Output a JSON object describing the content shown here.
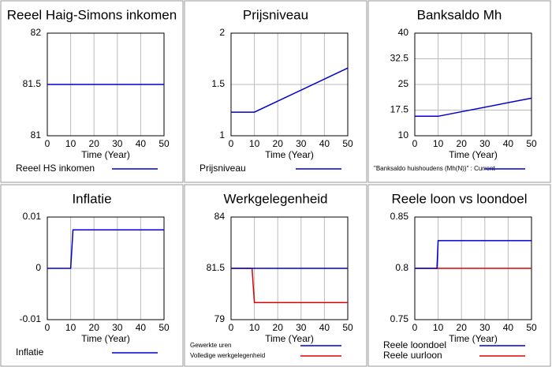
{
  "chart_data": [
    {
      "type": "line",
      "title": "Reeel Haig-Simons inkomen",
      "x_label": "Time (Year)",
      "x": [
        0,
        10,
        50
      ],
      "xlim": [
        0,
        50
      ],
      "xticks": [
        0,
        10,
        20,
        30,
        40,
        50
      ],
      "ylim": [
        81,
        82
      ],
      "yticks": [
        81,
        81.5,
        82
      ],
      "grid": true,
      "series": [
        {
          "name": "Reeel HS inkomen",
          "color": "#0000cc",
          "values": [
            81.5,
            81.5,
            81.5
          ]
        }
      ]
    },
    {
      "type": "line",
      "title": "Prijsniveau",
      "x_label": "Time (Year)",
      "x": [
        0,
        10,
        50
      ],
      "xlim": [
        0,
        50
      ],
      "xticks": [
        0,
        10,
        20,
        30,
        40,
        50
      ],
      "ylim": [
        1,
        2
      ],
      "yticks": [
        1,
        1.5,
        2
      ],
      "grid": true,
      "series": [
        {
          "name": "Prijsniveau",
          "color": "#0000cc",
          "values": [
            1.23,
            1.23,
            1.66
          ]
        }
      ]
    },
    {
      "type": "line",
      "title": "Banksaldo Mh",
      "x_label": "Time (Year)",
      "x": [
        0,
        10,
        50
      ],
      "xlim": [
        0,
        50
      ],
      "xticks": [
        0,
        10,
        20,
        30,
        40,
        50
      ],
      "ylim": [
        10,
        40
      ],
      "yticks": [
        10,
        17.5,
        25,
        32.5,
        40
      ],
      "grid": true,
      "series": [
        {
          "name": "\"Banksaldo huishoudens (Mh(N))\" : Current",
          "color": "#0000cc",
          "values": [
            15.7,
            15.7,
            21.0
          ]
        }
      ]
    },
    {
      "type": "line",
      "title": "Inflatie",
      "x_label": "Time (Year)",
      "x": [
        0,
        10,
        11,
        50
      ],
      "xlim": [
        0,
        50
      ],
      "xticks": [
        0,
        10,
        20,
        30,
        40,
        50
      ],
      "ylim": [
        -0.01,
        0.01
      ],
      "yticks": [
        -0.01,
        0,
        0.01
      ],
      "grid": true,
      "series": [
        {
          "name": "Inflatie",
          "color": "#0000cc",
          "values": [
            0,
            0,
            0.0075,
            0.0075
          ]
        }
      ]
    },
    {
      "type": "line",
      "title": "Werkgelegenheid",
      "x_label": "Time (Year)",
      "x": [
        0,
        9,
        10,
        50
      ],
      "xlim": [
        0,
        50
      ],
      "xticks": [
        0,
        10,
        20,
        30,
        40,
        50
      ],
      "ylim": [
        79,
        84
      ],
      "yticks": [
        79,
        81.5,
        84
      ],
      "grid": true,
      "series": [
        {
          "name": "Gewerkte uren",
          "color": "#0000cc",
          "values": [
            81.5,
            81.5,
            81.5,
            81.5
          ]
        },
        {
          "name": "Volledige werkgelegenheid",
          "color": "#dd0000",
          "values": [
            81.5,
            81.5,
            79.83,
            79.83
          ]
        }
      ]
    },
    {
      "type": "line",
      "title": "Reele loon vs loondoel",
      "x_label": "Time (Year)",
      "x": [
        0,
        9.5,
        10,
        50
      ],
      "xlim": [
        0,
        50
      ],
      "xticks": [
        0,
        10,
        20,
        30,
        40,
        50
      ],
      "ylim": [
        0.75,
        0.85
      ],
      "yticks": [
        0.75,
        0.8,
        0.85
      ],
      "grid": true,
      "series": [
        {
          "name": "Reele loondoel",
          "color": "#0000cc",
          "values": [
            0.8,
            0.8,
            0.827,
            0.827
          ]
        },
        {
          "name": "Reele uurloon",
          "color": "#dd0000",
          "values": [
            0.8,
            0.8,
            0.8,
            0.8
          ]
        }
      ]
    }
  ]
}
